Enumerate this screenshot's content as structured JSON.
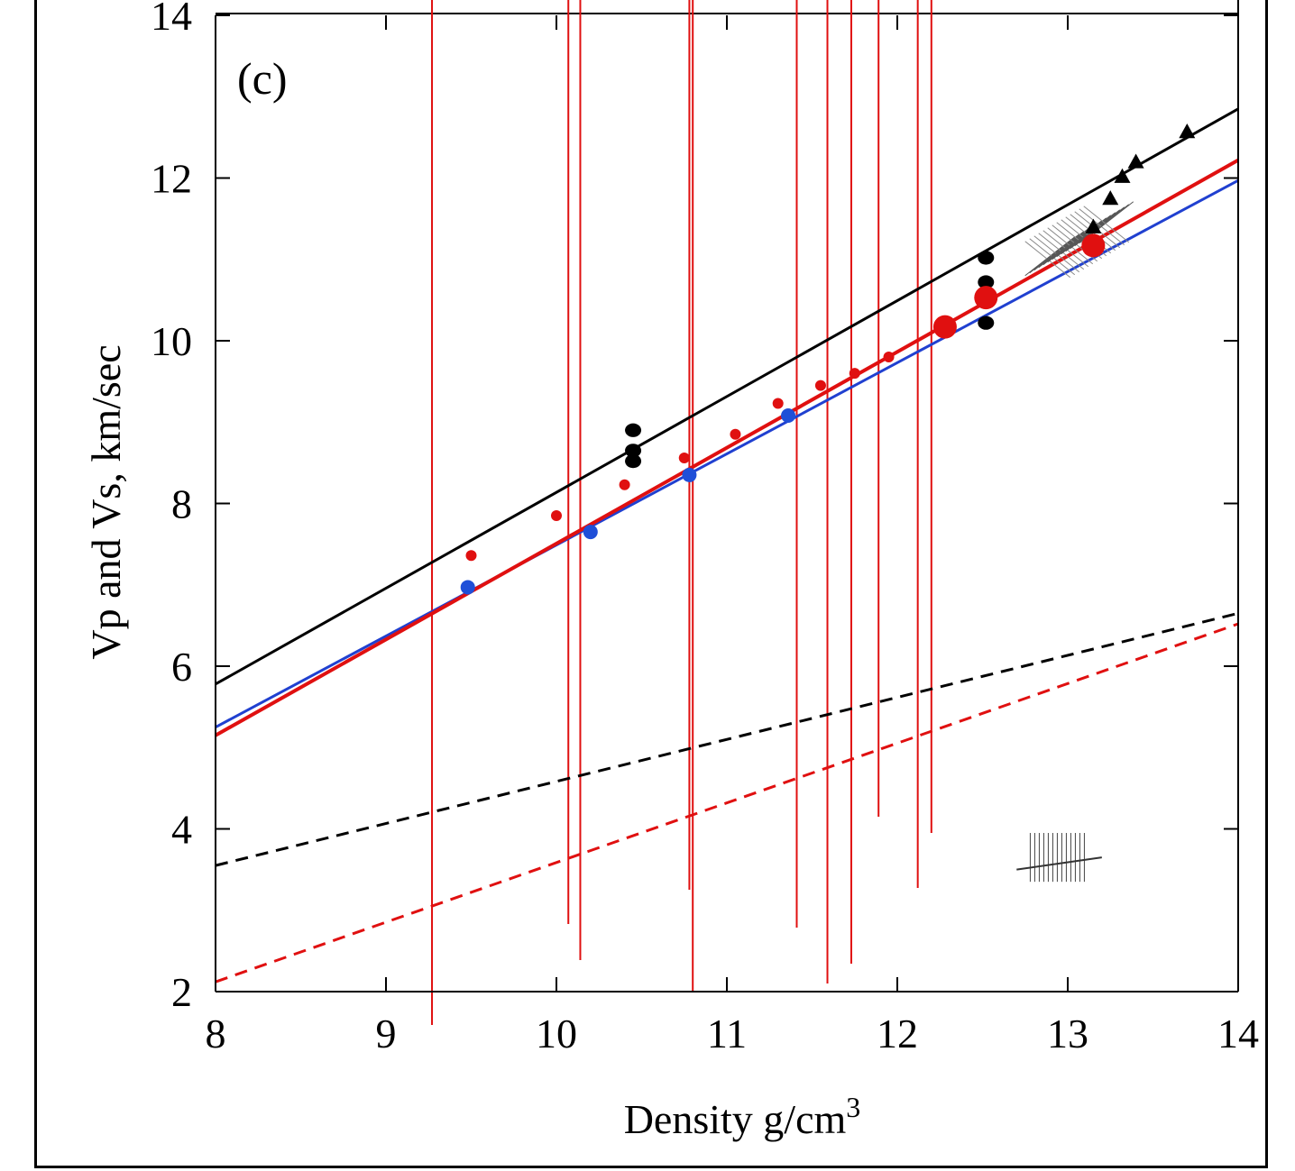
{
  "chart_data": {
    "type": "scatter",
    "panel_label": "(c)",
    "xlabel": "Density g/cm",
    "xlabel_sup": "3",
    "ylabel": "Vp and Vs, km/sec",
    "xlim": [
      8,
      14
    ],
    "ylim": [
      2,
      14
    ],
    "xticks": [
      8,
      9,
      10,
      11,
      12,
      13,
      14
    ],
    "yticks": [
      2,
      4,
      6,
      8,
      10,
      12,
      14
    ],
    "grid": false,
    "series": [
      {
        "kind": "line",
        "style": "solid",
        "color": "#000000",
        "points": [
          [
            8,
            5.78
          ],
          [
            14,
            12.85
          ]
        ]
      },
      {
        "kind": "line",
        "style": "solid",
        "color": "#2040d0",
        "points": [
          [
            8,
            5.25
          ],
          [
            14,
            11.97
          ]
        ]
      },
      {
        "kind": "line",
        "style": "solid",
        "color": "#e01010",
        "points": [
          [
            8,
            5.15
          ],
          [
            14,
            12.22
          ]
        ]
      },
      {
        "kind": "line",
        "style": "dashed",
        "color": "#000000",
        "points": [
          [
            8,
            3.55
          ],
          [
            14,
            6.65
          ]
        ]
      },
      {
        "kind": "line",
        "style": "dashed",
        "color": "#e01010",
        "points": [
          [
            8,
            2.12
          ],
          [
            14,
            6.52
          ]
        ]
      },
      {
        "kind": "points",
        "marker": "circle",
        "size": "large",
        "color": "#000000",
        "points": [
          [
            10.45,
            8.9
          ],
          [
            10.45,
            8.65
          ],
          [
            10.45,
            8.52
          ],
          [
            12.52,
            11.02
          ],
          [
            12.52,
            10.72
          ],
          [
            12.52,
            10.22
          ]
        ]
      },
      {
        "kind": "points",
        "marker": "circle",
        "size": "medium",
        "color": "#1f4fd8",
        "points": [
          [
            9.48,
            6.97
          ],
          [
            10.2,
            7.65
          ],
          [
            10.78,
            8.35
          ],
          [
            11.36,
            9.08
          ]
        ]
      },
      {
        "kind": "points",
        "marker": "circle",
        "size": "small",
        "color": "#e01010",
        "points": [
          [
            9.5,
            7.36
          ],
          [
            10.0,
            7.85
          ],
          [
            10.4,
            8.23
          ],
          [
            10.75,
            8.56
          ],
          [
            11.05,
            8.85
          ],
          [
            11.3,
            9.23
          ],
          [
            11.55,
            9.45
          ],
          [
            11.75,
            9.6
          ],
          [
            11.95,
            9.8
          ]
        ]
      },
      {
        "kind": "points",
        "marker": "circle",
        "size": "xlarge",
        "color": "#e01010",
        "points": [
          [
            12.28,
            10.17
          ],
          [
            12.52,
            10.53
          ],
          [
            13.15,
            11.17
          ]
        ]
      },
      {
        "kind": "points",
        "marker": "triangle",
        "size": "medium",
        "color": "#000000",
        "points": [
          [
            13.15,
            11.4
          ],
          [
            13.25,
            11.75
          ],
          [
            13.32,
            12.02
          ],
          [
            13.4,
            12.2
          ],
          [
            13.7,
            12.57
          ]
        ]
      }
    ],
    "annotations": [
      {
        "kind": "vertical-lines",
        "color": "#e01010",
        "x_values": [
          9.27,
          10.07,
          10.14,
          10.78,
          10.8,
          11.41,
          11.59,
          11.73,
          11.89,
          12.12,
          12.2
        ]
      }
    ]
  }
}
